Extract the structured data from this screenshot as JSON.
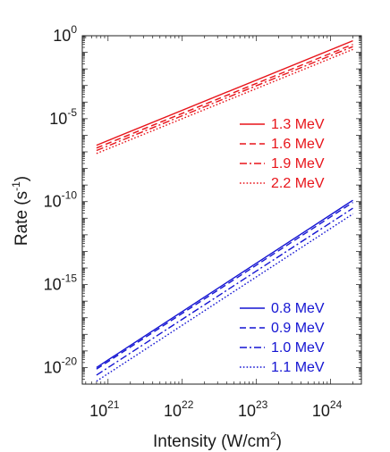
{
  "chart_data": {
    "type": "line",
    "xlabel": "Intensity (W/cm",
    "xlabel_sup": "2",
    "xlabel_end": ")",
    "ylabel": "Rate (s",
    "ylabel_sup": "-1",
    "ylabel_end": ")",
    "x_scale": "log",
    "y_scale": "log",
    "xlim": [
      4.5e+20,
      2.6e+24
    ],
    "ylim": [
      1e-21,
      1
    ],
    "x_ticks": [
      {
        "base": "10",
        "exp": "21",
        "value": 1e+21
      },
      {
        "base": "10",
        "exp": "22",
        "value": 1e+22
      },
      {
        "base": "10",
        "exp": "23",
        "value": 1e+23
      },
      {
        "base": "10",
        "exp": "24",
        "value": 1e+24
      }
    ],
    "y_ticks": [
      {
        "base": "10",
        "exp": "0",
        "value": 1
      },
      {
        "base": "10",
        "exp": "-5",
        "value": 1e-05
      },
      {
        "base": "10",
        "exp": "-10",
        "value": 1e-10
      },
      {
        "base": "10",
        "exp": "-15",
        "value": 1e-15
      },
      {
        "base": "10",
        "exp": "-20",
        "value": 1e-20
      }
    ],
    "grid": false,
    "legends": [
      {
        "placement": "upper-right",
        "color": "#e8141a",
        "entries": [
          "1.3 MeV",
          "1.6 MeV",
          "1.9 MeV",
          "2.2 MeV"
        ]
      },
      {
        "placement": "lower-right",
        "color": "#1414d2",
        "entries": [
          "0.8 MeV",
          "0.9 MeV",
          "1.0 MeV",
          "1.1 MeV"
        ]
      }
    ],
    "series": [
      {
        "name": "1.3 MeV",
        "color": "#e8141a",
        "dash": "solid",
        "x": [
          7e+20,
          2e+24
        ],
        "y": [
          2.5e-07,
          0.5
        ]
      },
      {
        "name": "1.6 MeV",
        "color": "#e8141a",
        "dash": "dashed",
        "x": [
          7e+20,
          2e+24
        ],
        "y": [
          1.7e-07,
          0.3
        ]
      },
      {
        "name": "1.9 MeV",
        "color": "#e8141a",
        "dash": "dashdot",
        "x": [
          7e+20,
          2e+24
        ],
        "y": [
          1.2e-07,
          0.22
        ]
      },
      {
        "name": "2.2 MeV",
        "color": "#e8141a",
        "dash": "dotted",
        "x": [
          7e+20,
          2e+24
        ],
        "y": [
          8e-08,
          0.15
        ]
      },
      {
        "name": "0.8 MeV",
        "color": "#1414d2",
        "dash": "solid",
        "x": [
          7e+20,
          2e+24
        ],
        "y": [
          1e-20,
          1.2e-10
        ]
      },
      {
        "name": "0.9 MeV",
        "color": "#1414d2",
        "dash": "dashed",
        "x": [
          7e+20,
          2e+24
        ],
        "y": [
          8e-21,
          9e-11
        ]
      },
      {
        "name": "1.0 MeV",
        "color": "#1414d2",
        "dash": "dashdot",
        "x": [
          7e+20,
          2e+24
        ],
        "y": [
          3.5e-21,
          4e-11
        ]
      },
      {
        "name": "1.1 MeV",
        "color": "#1414d2",
        "dash": "dotted",
        "x": [
          7e+20,
          2e+24
        ],
        "y": [
          1.5e-21,
          1.8e-11
        ]
      }
    ]
  }
}
